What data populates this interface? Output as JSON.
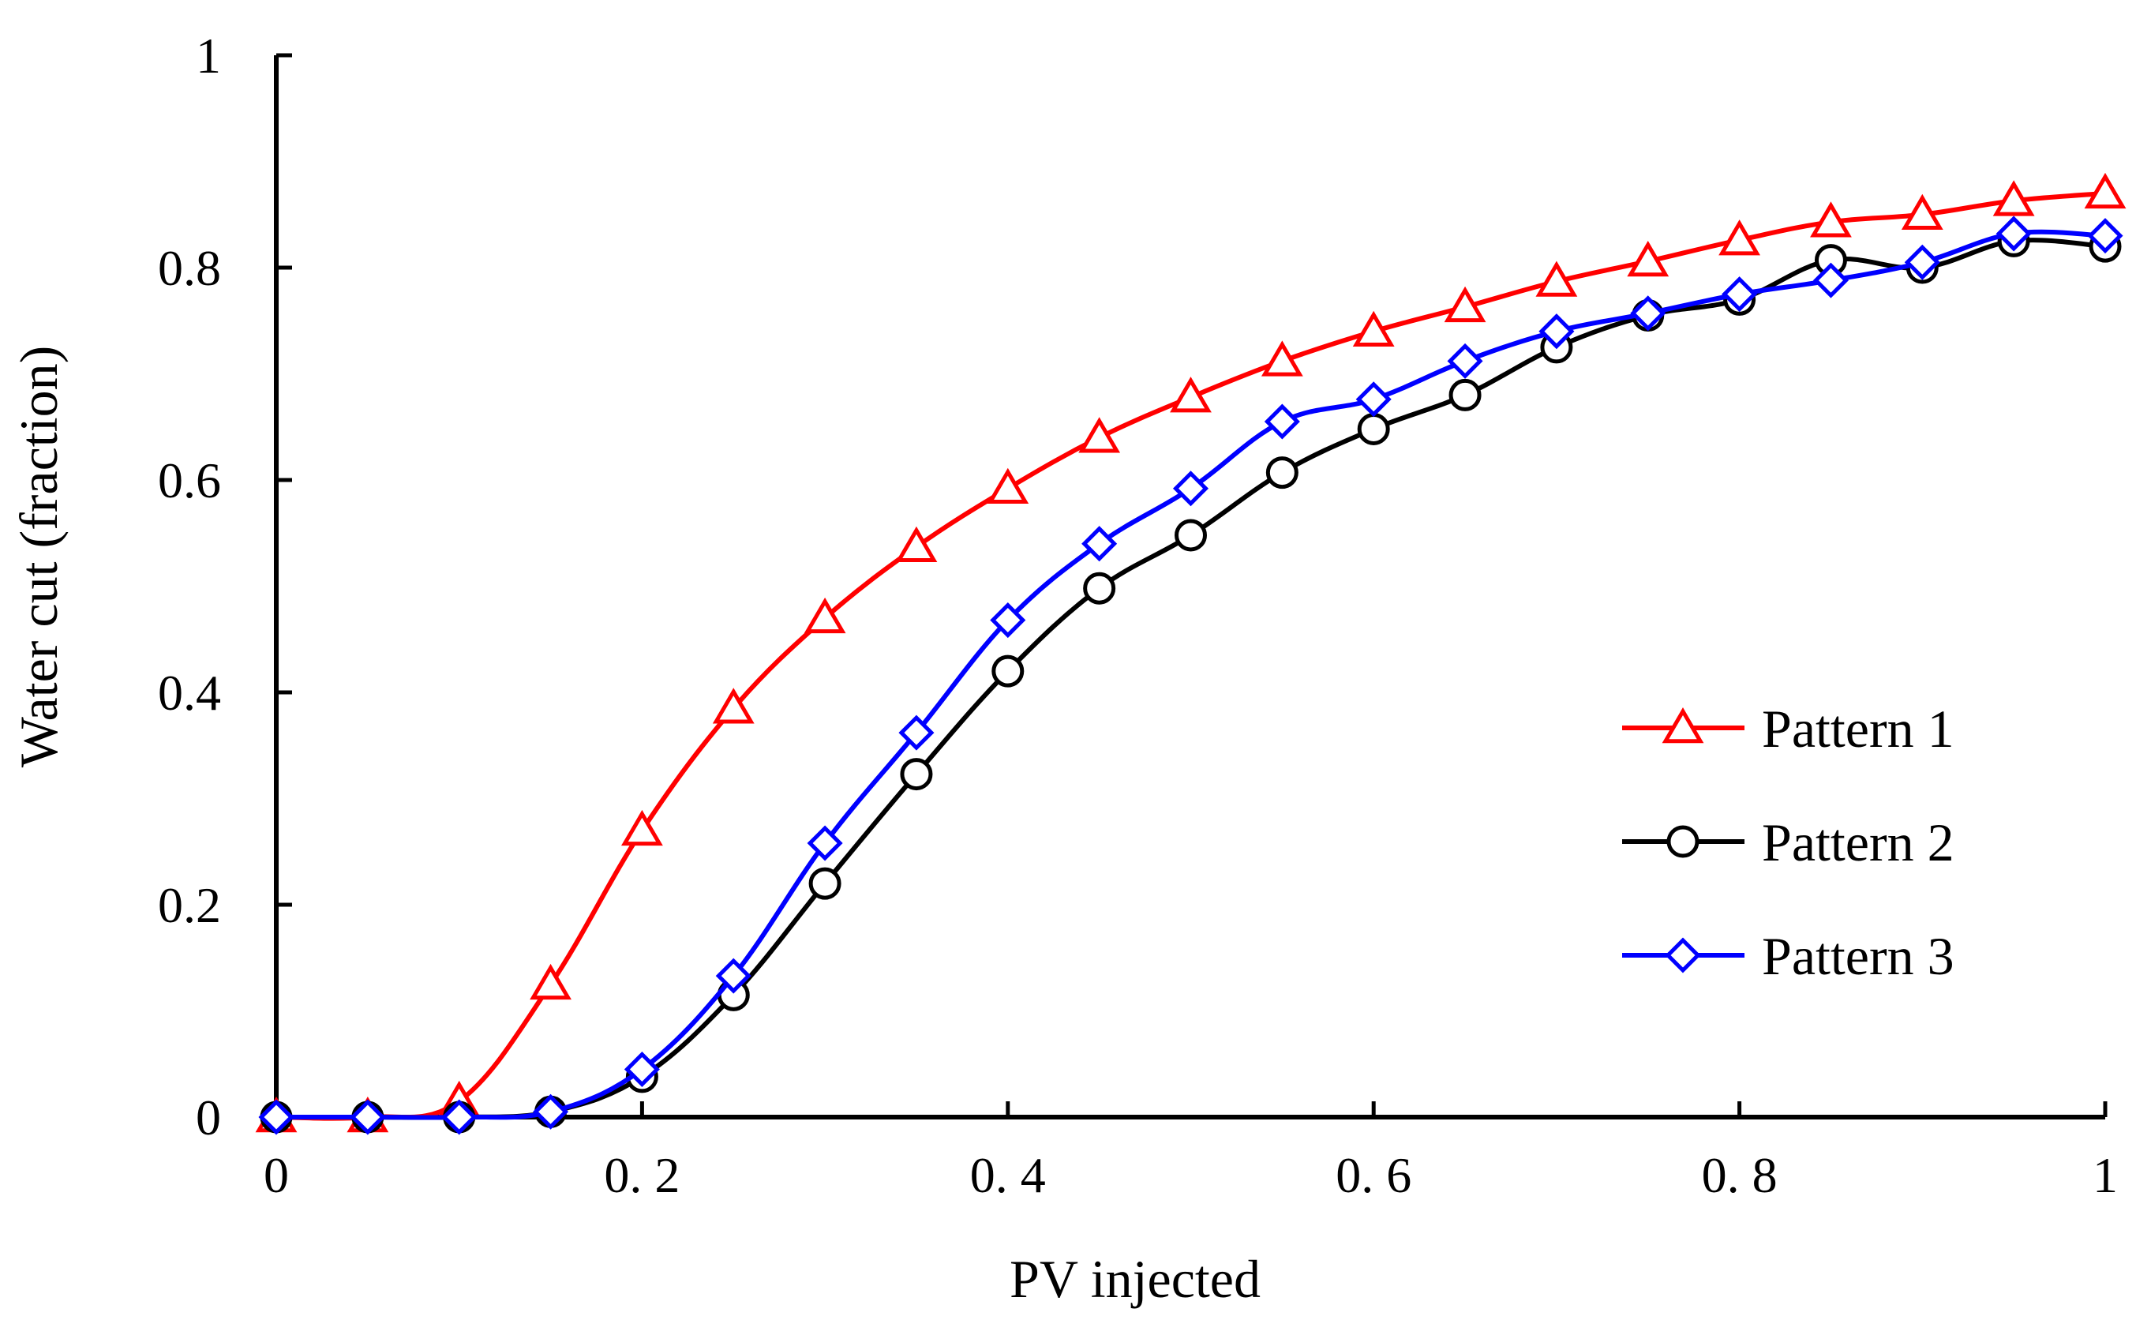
{
  "chart_data": {
    "type": "line",
    "title": "",
    "xlabel": "PV injected",
    "ylabel": "Water cut (fraction)",
    "xlim": [
      0,
      1
    ],
    "ylim": [
      0,
      1
    ],
    "x_ticks": [
      0,
      0.2,
      0.4,
      0.6,
      0.8,
      1
    ],
    "x_tick_labels": [
      "0",
      "0. 2",
      "0. 4",
      "0. 6",
      "0. 8",
      "1"
    ],
    "y_ticks": [
      0,
      0.2,
      0.4,
      0.6,
      0.8,
      1
    ],
    "y_tick_labels": [
      "0",
      "0.2",
      "0.4",
      "0.6",
      "0.8",
      "1"
    ],
    "grid": false,
    "legend_position": "right",
    "series": [
      {
        "name": "Pattern 1",
        "color": "#ff0000",
        "marker": "triangle",
        "x": [
          0,
          0.05,
          0.1,
          0.15,
          0.2,
          0.25,
          0.3,
          0.35,
          0.4,
          0.45,
          0.5,
          0.55,
          0.6,
          0.65,
          0.7,
          0.75,
          0.8,
          0.85,
          0.9,
          0.95,
          1
        ],
        "y": [
          0,
          0,
          0.015,
          0.125,
          0.27,
          0.385,
          0.47,
          0.537,
          0.592,
          0.64,
          0.678,
          0.712,
          0.74,
          0.763,
          0.787,
          0.806,
          0.826,
          0.843,
          0.85,
          0.863,
          0.87
        ]
      },
      {
        "name": "Pattern 2",
        "color": "#000000",
        "marker": "circle",
        "x": [
          0,
          0.05,
          0.1,
          0.15,
          0.2,
          0.25,
          0.3,
          0.35,
          0.4,
          0.45,
          0.5,
          0.55,
          0.6,
          0.65,
          0.7,
          0.75,
          0.8,
          0.85,
          0.9,
          0.95,
          1
        ],
        "y": [
          0,
          0,
          0,
          0.005,
          0.038,
          0.115,
          0.22,
          0.323,
          0.42,
          0.498,
          0.548,
          0.607,
          0.648,
          0.68,
          0.725,
          0.755,
          0.77,
          0.807,
          0.8,
          0.825,
          0.82
        ]
      },
      {
        "name": "Pattern 3",
        "color": "#0000ff",
        "marker": "diamond",
        "x": [
          0,
          0.05,
          0.1,
          0.15,
          0.2,
          0.25,
          0.3,
          0.35,
          0.4,
          0.45,
          0.5,
          0.55,
          0.6,
          0.65,
          0.7,
          0.75,
          0.8,
          0.85,
          0.9,
          0.95,
          1
        ],
        "y": [
          0,
          0,
          0,
          0.005,
          0.045,
          0.133,
          0.258,
          0.362,
          0.468,
          0.54,
          0.592,
          0.655,
          0.676,
          0.712,
          0.74,
          0.757,
          0.775,
          0.788,
          0.805,
          0.832,
          0.83
        ]
      }
    ]
  }
}
